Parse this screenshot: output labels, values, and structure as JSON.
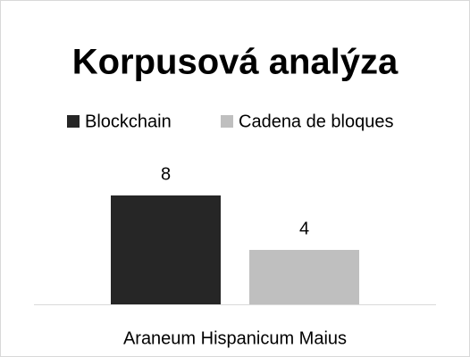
{
  "chart_data": {
    "type": "bar",
    "title": "Korpusová analýza",
    "categories": [
      "Araneum Hispanicum Maius"
    ],
    "series": [
      {
        "name": "Blockchain",
        "color": "#262626",
        "values": [
          8
        ]
      },
      {
        "name": "Cadena de bloques",
        "color": "#bfbfbf",
        "values": [
          4
        ]
      }
    ],
    "legend": "top"
  }
}
